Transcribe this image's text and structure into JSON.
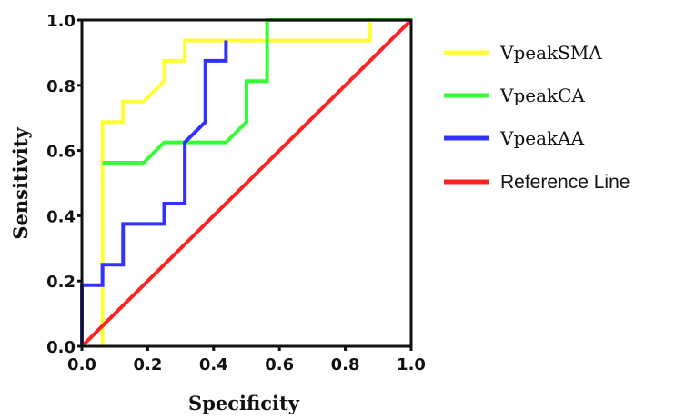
{
  "chart_data": {
    "type": "line",
    "title": "",
    "xlabel": "Specificity",
    "ylabel": "Sensitivity",
    "xlim": [
      0,
      1
    ],
    "ylim": [
      0,
      1
    ],
    "xticks": [
      "0.0",
      "0.2",
      "0.4",
      "0.6",
      "0.8",
      "1.0"
    ],
    "yticks": [
      "0.0",
      "0.2",
      "0.4",
      "0.6",
      "0.8",
      "1.0"
    ],
    "grid": false,
    "legend_position": "right",
    "series": [
      {
        "name": "VpeakSMA",
        "color": "#ffff33",
        "points": [
          [
            0.0625,
            0
          ],
          [
            0.0625,
            0.6875
          ],
          [
            0.125,
            0.6875
          ],
          [
            0.125,
            0.75
          ],
          [
            0.1875,
            0.75
          ],
          [
            0.25,
            0.8125
          ],
          [
            0.25,
            0.875
          ],
          [
            0.3125,
            0.875
          ],
          [
            0.3125,
            0.9375
          ],
          [
            0.875,
            0.9375
          ],
          [
            0.875,
            1.0
          ],
          [
            1.0,
            1.0
          ]
        ]
      },
      {
        "name": "VpeakCA",
        "color": "#33ff33",
        "points": [
          [
            0.0625,
            0.5625
          ],
          [
            0.1875,
            0.5625
          ],
          [
            0.25,
            0.625
          ],
          [
            0.4375,
            0.625
          ],
          [
            0.5,
            0.6875
          ],
          [
            0.5,
            0.8125
          ],
          [
            0.5625,
            0.8125
          ],
          [
            0.5625,
            1.0
          ],
          [
            1.0,
            1.0
          ]
        ]
      },
      {
        "name": "VpeakAA",
        "color": "#3333ff",
        "points": [
          [
            0,
            0
          ],
          [
            0,
            0.1875
          ],
          [
            0.0625,
            0.1875
          ],
          [
            0.0625,
            0.25
          ],
          [
            0.125,
            0.25
          ],
          [
            0.125,
            0.375
          ],
          [
            0.25,
            0.375
          ],
          [
            0.25,
            0.4375
          ],
          [
            0.3125,
            0.4375
          ],
          [
            0.3125,
            0.625
          ],
          [
            0.375,
            0.6875
          ],
          [
            0.375,
            0.875
          ],
          [
            0.4375,
            0.875
          ],
          [
            0.4375,
            0.9375
          ]
        ]
      },
      {
        "name": "Reference Line",
        "color": "#ff2222",
        "points": [
          [
            0,
            0
          ],
          [
            1,
            1
          ]
        ]
      }
    ]
  }
}
